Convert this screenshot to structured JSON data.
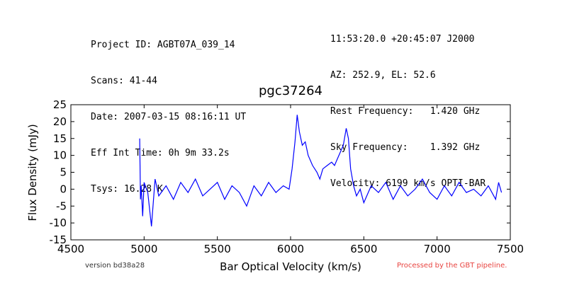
{
  "info": {
    "project": "Project ID: AGBT07A_039_14",
    "scans": "Scans: 41-44",
    "date": "Date: 2007-03-15 08:16:11 UT",
    "int_time": "Eff Int Time: 0h 9m 33.2s",
    "tsys": "Tsys: 16.28 K",
    "coords": "11:53:20.0 +20:45:07 J2000",
    "azel": "AZ: 252.9, EL: 52.6",
    "rest_freq": "Rest Frequency:   1.420 GHz",
    "sky_freq": "Sky Frequency:    1.392 GHz",
    "velocity": "Velocity: 6199 km/s OPTI-BAR"
  },
  "footer": {
    "version": "version bd38a28",
    "processed": "Processed by the GBT pipeline."
  },
  "colors": {
    "line": "#0000ff",
    "processed": "#e8433f"
  },
  "chart_data": {
    "type": "line",
    "title": "pgc37264",
    "xlabel": "Bar Optical Velocity (km/s)",
    "ylabel": "Flux Density (mJy)",
    "xlim": [
      4500,
      7500
    ],
    "ylim": [
      -15,
      25
    ],
    "xticks": [
      4500,
      5000,
      5500,
      6000,
      6500,
      7000,
      7500
    ],
    "yticks": [
      -15,
      -10,
      -5,
      0,
      5,
      10,
      15,
      20,
      25
    ],
    "grid": false,
    "series": [
      {
        "x": [
          4970,
          4975,
          4980,
          4990,
          5000,
          5025,
          5050,
          5075,
          5100,
          5150,
          5200,
          5250,
          5300,
          5350,
          5400,
          5450,
          5500,
          5550,
          5600,
          5650,
          5700,
          5750,
          5800,
          5850,
          5900,
          5950,
          5990,
          6010,
          6030,
          6045,
          6060,
          6080,
          6100,
          6120,
          6150,
          6180,
          6200,
          6220,
          6250,
          6280,
          6300,
          6320,
          6340,
          6360,
          6380,
          6395,
          6410,
          6430,
          6450,
          6475,
          6500,
          6550,
          6600,
          6650,
          6700,
          6750,
          6800,
          6850,
          6900,
          6950,
          7000,
          7050,
          7100,
          7150,
          7200,
          7250,
          7300,
          7350,
          7400,
          7420,
          7440
        ],
        "y": [
          15,
          -3,
          1,
          -8,
          2,
          -1,
          -11,
          3,
          -2,
          1,
          -3,
          2,
          -1,
          3,
          -2,
          0,
          2,
          -3,
          1,
          -1,
          -5,
          1,
          -2,
          2,
          -1,
          1,
          0,
          6,
          14,
          22,
          17,
          13,
          14,
          10,
          7,
          5,
          3,
          6,
          7,
          8,
          7,
          9,
          11,
          13,
          18,
          15,
          6,
          1,
          -2,
          0,
          -4,
          1,
          -1,
          2,
          -3,
          1,
          -2,
          0,
          3,
          -1,
          -3,
          1,
          -2,
          2,
          -1,
          0,
          -2,
          1,
          -3,
          2,
          -1
        ]
      }
    ]
  }
}
